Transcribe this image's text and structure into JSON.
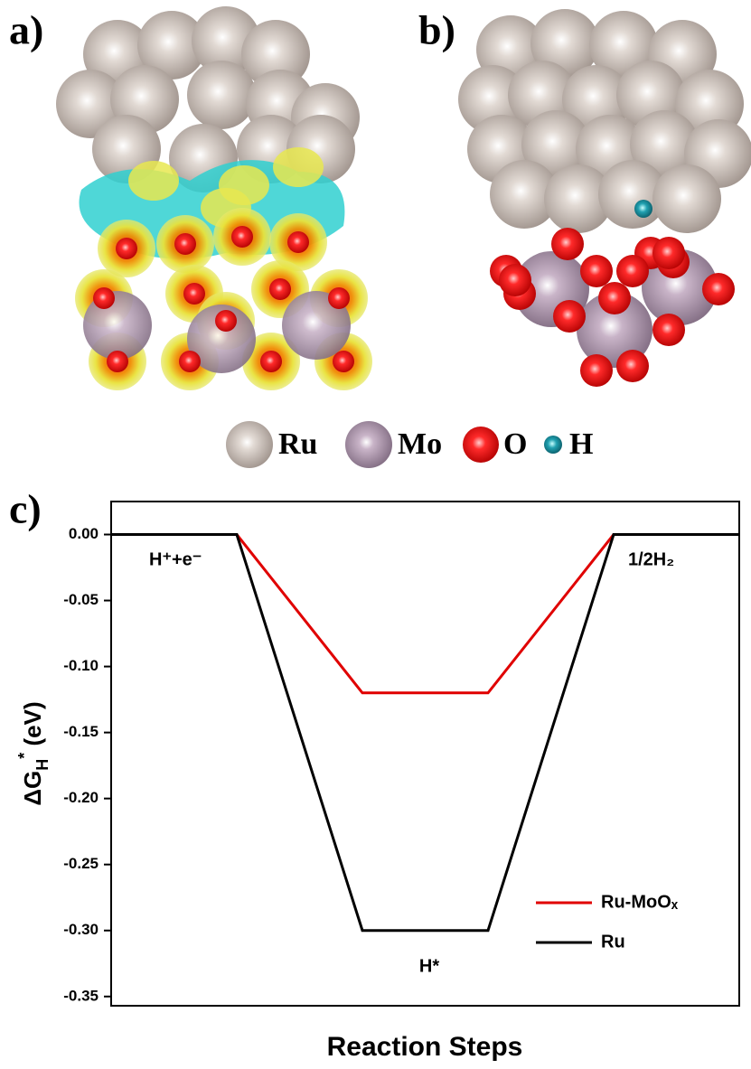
{
  "chart_data": {
    "type": "line",
    "panel_labels": [
      "a)",
      "b)",
      "c)"
    ],
    "atom_legend": [
      "Ru",
      "Mo",
      "O",
      "H"
    ],
    "xlabel": "Reaction Steps",
    "ylabel": [
      "ΔG",
      "H",
      "*",
      " (eV)"
    ],
    "x": [
      0,
      1,
      2,
      3,
      4,
      5
    ],
    "xlim": [
      0,
      5
    ],
    "ylim": [
      -0.357,
      0.025
    ],
    "yticks": [
      {
        "value": 0,
        "label": "0.00"
      },
      {
        "value": -0.05,
        "label": "-0.05"
      },
      {
        "value": -0.1,
        "label": "-0.10"
      },
      {
        "value": -0.15,
        "label": "-0.15"
      },
      {
        "value": -0.2,
        "label": "-0.20"
      },
      {
        "value": -0.25,
        "label": "-0.25"
      },
      {
        "value": -0.3,
        "label": "-0.30"
      },
      {
        "value": -0.35,
        "label": "-0.35"
      }
    ],
    "series": [
      {
        "name": "Ru-MoOₓ",
        "color": "#e00000",
        "values": [
          0,
          0,
          -0.12,
          -0.12,
          0,
          0
        ]
      },
      {
        "name": "Ru",
        "color": "#000000",
        "values": [
          0,
          0,
          -0.3,
          -0.3,
          0,
          0
        ]
      }
    ],
    "annotations": [
      "H⁺+e⁻",
      "1/2H₂",
      "H*"
    ]
  }
}
